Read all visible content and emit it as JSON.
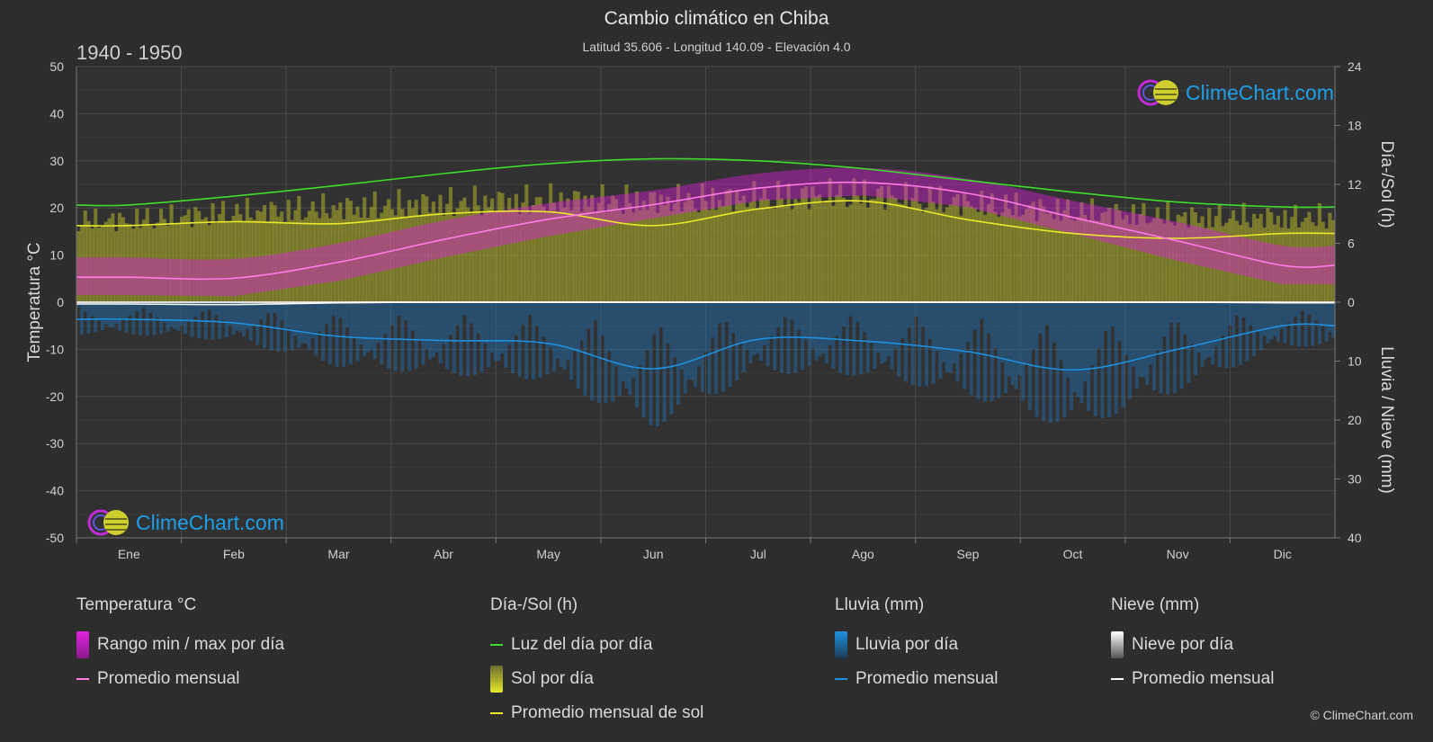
{
  "header": {
    "title": "Cambio climático en Chiba",
    "subtitle": "Latitud 35.606 - Longitud 140.09 - Elevación 4.0",
    "period": "1940 - 1950"
  },
  "brand": {
    "logo_text": "ClimeChart.com",
    "copyright": "© ClimeChart.com"
  },
  "colors": {
    "background": "#2d2d2d",
    "temp_range": "#d81fd8",
    "temp_avg": "#ff7ae6",
    "daylight": "#3ddc2b",
    "sunshine_fill": "#b3b32a",
    "sunshine_avg": "#e8e82a",
    "rain_fill": "#1f6fb0",
    "rain_avg": "#1e90e0",
    "snow_fill": "#cccccc",
    "snow_avg": "#ffffff",
    "logo": "#1e9ee8"
  },
  "legend": {
    "temperature": {
      "title": "Temperatura °C",
      "items": [
        "Rango min / max por día",
        "Promedio mensual"
      ]
    },
    "sun": {
      "title": "Día-/Sol (h)",
      "items": [
        "Luz del día por día",
        "Sol por día",
        "Promedio mensual de sol"
      ]
    },
    "rain": {
      "title": "Lluvia (mm)",
      "items": [
        "Lluvia por día",
        "Promedio mensual"
      ]
    },
    "snow": {
      "title": "Nieve (mm)",
      "items": [
        "Nieve por día",
        "Promedio mensual"
      ]
    }
  },
  "chart_data": {
    "type": "line",
    "x": [
      "Ene",
      "Feb",
      "Mar",
      "Abr",
      "May",
      "Jun",
      "Jul",
      "Ago",
      "Sep",
      "Oct",
      "Nov",
      "Dic"
    ],
    "y_left": {
      "label": "Temperatura °C",
      "ylim": [
        -50,
        50
      ],
      "ticks": [
        50,
        40,
        30,
        20,
        10,
        0,
        -10,
        -20,
        -30,
        -40,
        -50
      ]
    },
    "y_right_top": {
      "label": "Día-/Sol (h)",
      "ylim": [
        0,
        24
      ],
      "ticks": [
        24,
        18,
        12,
        6,
        0
      ]
    },
    "y_right_bottom": {
      "label": "Lluvia / Nieve (mm)",
      "ylim": [
        0,
        40
      ],
      "ticks": [
        0,
        10,
        20,
        30,
        40
      ]
    },
    "grid": true,
    "series": [
      {
        "name": "Promedio mensual",
        "group": "temperature",
        "values": [
          5.3,
          5.1,
          8.5,
          13.3,
          17.6,
          20.7,
          24.2,
          25.4,
          23.1,
          18.0,
          13.0,
          7.8
        ]
      },
      {
        "name": "Rango min / max por día",
        "group": "temperature",
        "min": [
          1.5,
          1.3,
          4.5,
          9.5,
          14.0,
          17.8,
          21.5,
          22.7,
          20.2,
          14.5,
          8.8,
          3.8
        ],
        "max": [
          9.5,
          9.2,
          12.5,
          17.3,
          21.0,
          23.7,
          27.3,
          28.5,
          26.2,
          21.5,
          17.0,
          12.0
        ]
      },
      {
        "name": "Luz del día por día",
        "group": "sun",
        "values": [
          9.9,
          10.8,
          11.9,
          13.1,
          14.1,
          14.6,
          14.4,
          13.6,
          12.4,
          11.2,
          10.2,
          9.7
        ]
      },
      {
        "name": "Sol por día",
        "group": "sun",
        "values": [
          8.5,
          9.3,
          9.8,
          10.3,
          10.6,
          10.5,
          10.9,
          11.3,
          10.3,
          9.4,
          8.9,
          8.8
        ]
      },
      {
        "name": "Promedio mensual de sol",
        "group": "sun",
        "values": [
          7.8,
          8.2,
          8.0,
          9.0,
          9.2,
          7.8,
          9.5,
          10.3,
          8.4,
          7.0,
          6.5,
          7.0
        ]
      },
      {
        "name": "Promedio mensual",
        "group": "rain",
        "values": [
          2.9,
          3.5,
          5.8,
          6.5,
          7.0,
          11.3,
          6.3,
          6.6,
          8.4,
          11.5,
          8.0,
          4.0
        ]
      },
      {
        "name": "Promedio mensual",
        "group": "snow",
        "values": [
          0.3,
          0.4,
          0.1,
          0,
          0,
          0,
          0,
          0,
          0,
          0,
          0,
          0.1
        ]
      }
    ]
  }
}
